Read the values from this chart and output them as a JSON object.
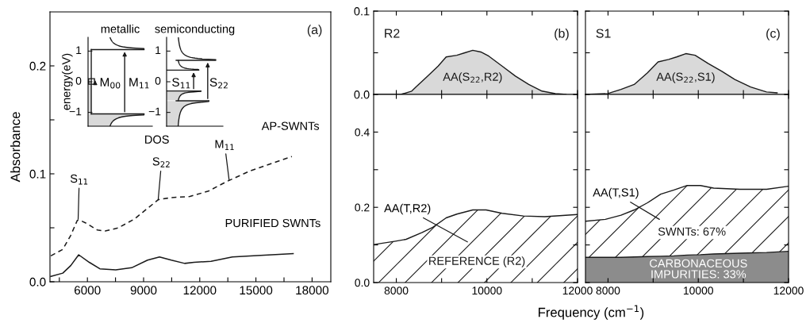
{
  "chart_data": [
    {
      "type": "line",
      "ylabel": "Absorbance",
      "xlim": [
        4000,
        19000
      ],
      "ylim": [
        0,
        0.25
      ],
      "xticks": [
        {
          "value": 4500,
          "label": null
        },
        6000,
        {
          "value": 7500,
          "label": null
        },
        9000,
        {
          "value": 10500,
          "label": null
        },
        12000,
        {
          "value": 13500,
          "label": null
        },
        15000,
        {
          "value": 16500,
          "label": null
        },
        18000
      ],
      "yticks": [
        {
          "value": 0,
          "label": "0.0"
        },
        {
          "value": 0.05,
          "label": null
        },
        {
          "value": 0.1,
          "label": "0.1"
        },
        {
          "value": 0.15,
          "label": null
        },
        {
          "value": 0.2,
          "label": "0.2"
        }
      ],
      "grid": false,
      "legend": false,
      "series": [
        {
          "name": "AP-SWNTs",
          "color": "#1a1a1a",
          "line_style": "dashed",
          "x": [
            4047,
            4684,
            5109,
            5462,
            5604,
            5958,
            6520,
            6950,
            7655,
            8500,
            9210,
            9780,
            10485,
            11475,
            12466,
            13457,
            14730,
            16920
          ],
          "values": [
            0.024,
            0.03,
            0.043,
            0.057,
            0.057,
            0.054,
            0.048,
            0.047,
            0.05,
            0.058,
            0.068,
            0.076,
            0.078,
            0.079,
            0.084,
            0.093,
            0.103,
            0.116
          ]
        },
        {
          "name": "PURIFIED SWNTs",
          "color": "#1a1a1a",
          "line_style": "solid",
          "x": [
            4047,
            4684,
            5109,
            5533,
            6100,
            6665,
            7515,
            8363,
            9210,
            9850,
            10485,
            11193,
            11690,
            12600,
            13740,
            14870,
            16990
          ],
          "values": [
            0.005,
            0.008,
            0.015,
            0.025,
            0.018,
            0.012,
            0.011,
            0.013,
            0.02,
            0.023,
            0.02,
            0.017,
            0.018,
            0.019,
            0.023,
            0.024,
            0.026
          ]
        }
      ],
      "annotations": [
        "(a)",
        {
          "text": "S$_{11}$",
          "x": 5505,
          "y": 0.058
        },
        {
          "text": "S$_{22}$",
          "x": 9780,
          "y": 0.076
        },
        {
          "text": "M$_{11}$",
          "x": 13570,
          "y": 0.094
        }
      ]
    },
    {
      "type": "other",
      "title": "metallic",
      "ylabel": "energy(eV)",
      "xlabel": "DOS",
      "annotations": [
        "1",
        "0",
        "−1",
        "M$_{00}$",
        "M$_{11}$"
      ]
    },
    {
      "type": "other",
      "title": "semiconducting",
      "annotations": [
        "1",
        "0",
        "−1",
        "S$_{11}$",
        "S$_{22}$"
      ]
    },
    {
      "type": "area",
      "xlim": [
        7500,
        12000
      ],
      "ylim": [
        0,
        0.1
      ],
      "xticks": [
        8000,
        {
          "value": 9000,
          "label": null
        },
        10000,
        {
          "value": 11000,
          "label": null
        },
        12000
      ],
      "yticks": [
        {
          "value": 0,
          "label": "0.0"
        },
        {
          "value": 0.05,
          "label": null
        },
        {
          "value": 0.1,
          "label": "0.1"
        }
      ],
      "tick_labels": "y",
      "grid": false,
      "series": [
        {
          "color": "#d9d9d9",
          "x": [
            7500,
            8100,
            8340,
            8454,
            8690,
            8924,
            9100,
            9336,
            9512,
            9688,
            9865,
            10041,
            10335,
            10629,
            10923,
            11217,
            11511,
            11746
          ],
          "values": [
            0,
            0,
            0.004,
            0.01,
            0.022,
            0.034,
            0.045,
            0.047,
            0.05,
            0.053,
            0.051,
            0.046,
            0.034,
            0.022,
            0.012,
            0.004,
            0.001,
            0
          ]
        }
      ],
      "annotations": [
        "R2",
        "(b)",
        "AA(S$_{22}$,R2)"
      ]
    },
    {
      "type": "area",
      "xlabel": "Frequency (cm$^{−1}$)",
      "xlim": [
        7500,
        12000
      ],
      "ylim": [
        0,
        0.5
      ],
      "xticks": [
        8000,
        {
          "value": 9000,
          "label": null
        },
        10000,
        {
          "value": 11000,
          "label": null
        },
        12000
      ],
      "yticks": [
        {
          "value": 0,
          "label": "0.0"
        },
        {
          "value": 0.1,
          "label": null
        },
        {
          "value": 0.2,
          "label": "0.2"
        },
        {
          "value": 0.3,
          "label": null
        },
        {
          "value": 0.4,
          "label": "0.4"
        },
        {
          "value": 0.5,
          "label": null
        }
      ],
      "grid": false,
      "series": [
        {
          "color": "#ffffff",
          "x": [
            7500,
            7983,
            8218,
            8571,
            8806,
            9100,
            9336,
            9688,
            9982,
            10335,
            10806,
            11276,
            12000
          ],
          "values": [
            0.101,
            0.11,
            0.115,
            0.133,
            0.147,
            0.172,
            0.182,
            0.193,
            0.193,
            0.184,
            0.177,
            0.175,
            0.181
          ]
        }
      ],
      "annotations": [
        "AA(T,R2)",
        "REFERENCE (R2)"
      ]
    },
    {
      "type": "area",
      "xlim": [
        7500,
        12000
      ],
      "ylim": [
        0,
        0.1
      ],
      "xticks": [
        8000,
        {
          "value": 9000,
          "label": null
        },
        10000,
        {
          "value": 11000,
          "label": null
        },
        12000
      ],
      "yticks": [
        0,
        0.05,
        0.1
      ],
      "tick_labels": false,
      "grid": false,
      "series": [
        {
          "color": "#d9d9d9",
          "x": [
            7500,
            7994,
            8288,
            8580,
            8874,
            9109,
            9343,
            9519,
            9724,
            9930,
            10223,
            10516,
            10809,
            11161,
            11513,
            11748
          ],
          "values": [
            0,
            0.001,
            0.006,
            0.012,
            0.026,
            0.039,
            0.042,
            0.045,
            0.049,
            0.047,
            0.037,
            0.028,
            0.018,
            0.009,
            0.003,
            0.002
          ]
        }
      ],
      "annotations": [
        "S1",
        "(c)",
        "AA(S$_{22}$,S1)"
      ]
    },
    {
      "type": "area",
      "stacked": true,
      "xlim": [
        7500,
        12000
      ],
      "ylim": [
        0,
        0.5
      ],
      "xticks": [
        8000,
        {
          "value": 9000,
          "label": null
        },
        10000,
        {
          "value": 11000,
          "label": null
        },
        12000
      ],
      "yticks": [
        0,
        0.1,
        0.2,
        0.3,
        0.4,
        0.5
      ],
      "tick_labels": "x",
      "grid": false,
      "x": [
        7500,
        7941,
        8288,
        8580,
        8874,
        9167,
        9460,
        9754,
        10047,
        10340,
        10927,
        11513,
        12000
      ],
      "series": [
        {
          "color": "#8c8c8c",
          "values": [
            0.067,
            0.067,
            0.067,
            0.068,
            0.069,
            0.07,
            0.071,
            0.073,
            0.074,
            0.076,
            0.078,
            0.08,
            0.083
          ]
        },
        {
          "color": "#ffffff",
          "values": [
            0.096,
            0.101,
            0.112,
            0.125,
            0.143,
            0.165,
            0.175,
            0.185,
            0.184,
            0.175,
            0.17,
            0.168,
            0.173
          ]
        }
      ],
      "annotations": [
        "AA(T,S1)",
        "SWNTs: 67%",
        "CARBONACEOUS\nIMPURITIES: 33%"
      ]
    }
  ]
}
